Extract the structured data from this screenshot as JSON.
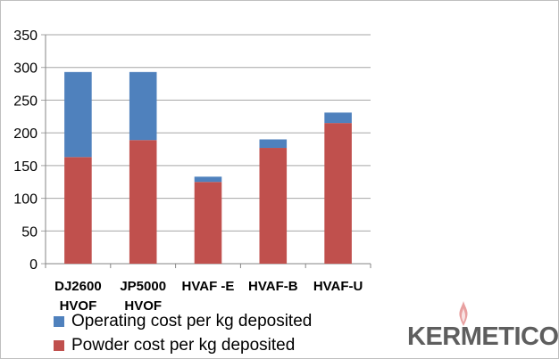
{
  "chart_data": {
    "type": "bar",
    "stacked": true,
    "categories": [
      [
        "DJ2600",
        "HVOF"
      ],
      [
        "JP5000",
        "HVOF"
      ],
      [
        "HVAF -E"
      ],
      [
        "HVAF-B"
      ],
      [
        "HVAF-U"
      ]
    ],
    "series": [
      {
        "name": "Powder cost per kg deposited",
        "color": "#c0504d",
        "values": [
          163,
          189,
          125,
          177,
          215
        ]
      },
      {
        "name": "Operating cost per kg deposited",
        "color": "#4f81bd",
        "values": [
          130,
          104,
          8,
          13,
          16
        ]
      }
    ],
    "ylim": [
      0,
      350
    ],
    "yticks": [
      "0",
      "50",
      "100",
      "150",
      "200",
      "250",
      "300",
      "350"
    ],
    "grid": true,
    "legend_placement": "bottom-left"
  },
  "legend": [
    {
      "label": "Operating cost per kg deposited",
      "color": "#4f81bd"
    },
    {
      "label": "Powder cost per kg deposited",
      "color": "#c0504d"
    }
  ],
  "logo": {
    "text": "KERMETICO",
    "flame_color": "#e8a0a0"
  }
}
